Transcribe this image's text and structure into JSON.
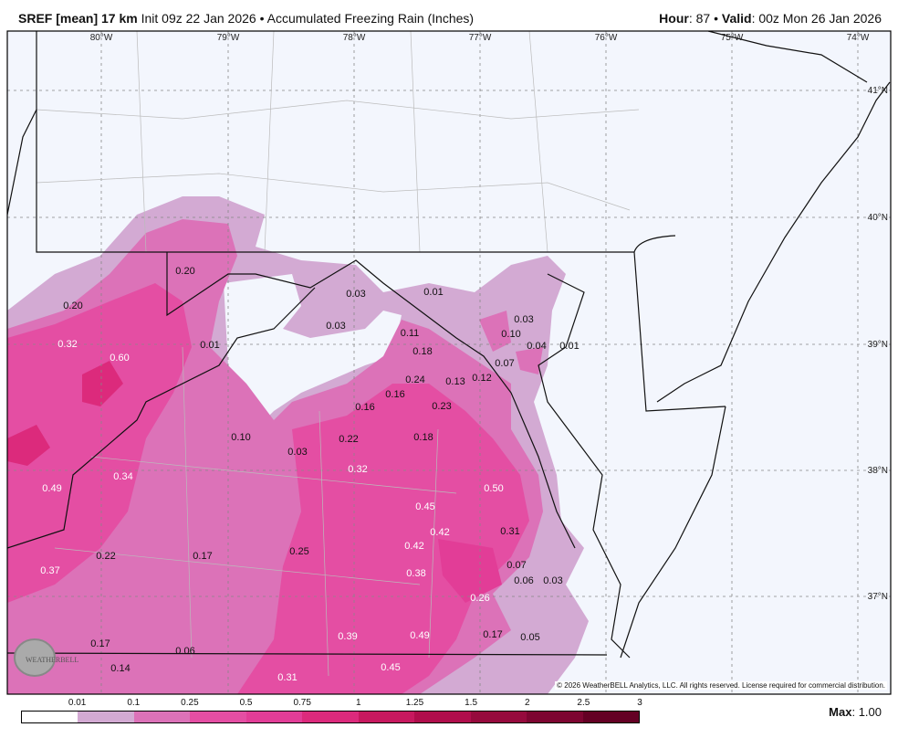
{
  "header": {
    "model": "SREF [mean] 17 km",
    "init": "Init 09z 22 Jan 2026",
    "separator": "•",
    "product": "Accumulated Freezing Rain (Inches)",
    "hour_label": "Hour",
    "hour_value": ": 87",
    "valid_label": "Valid",
    "valid_value": ": 00z Mon 26 Jan 2026"
  },
  "map": {
    "background": "#f3f6fd",
    "longitude_labels": [
      "80°W",
      "79°W",
      "78°W",
      "77°W",
      "76°W",
      "75°W",
      "74°W"
    ],
    "latitude_labels": [
      "41°N",
      "40°N",
      "39°N",
      "38°N",
      "37°N"
    ],
    "value_labels": [
      "0.20",
      "0.20",
      "0.32",
      "0.60",
      "0.01",
      "0.03",
      "0.03",
      "0.01",
      "0.03",
      "0.10",
      "0.04",
      "0.01",
      "0.11",
      "0.18",
      "0.07",
      "0.12",
      "0.13",
      "0.24",
      "0.16",
      "0.16",
      "0.23",
      "0.10",
      "0.03",
      "0.22",
      "0.18",
      "0.32",
      "0.34",
      "0.49",
      "0.50",
      "0.45",
      "0.42",
      "0.31",
      "0.42",
      "0.22",
      "0.17",
      "0.25",
      "0.37",
      "0.38",
      "0.07",
      "0.06",
      "0.03",
      "0.26",
      "0.39",
      "0.49",
      "0.17",
      "0.05",
      "0.17",
      "0.06",
      "0.14",
      "0.31",
      "0.45"
    ],
    "logo_text": "WeatherBELL Analytics LLC",
    "copyright": "© 2026 WeatherBELL Analytics, LLC. All rights reserved. License required for commercial distribution."
  },
  "legend": {
    "ticks": [
      "0.01",
      "0.1",
      "0.25",
      "0.5",
      "0.75",
      "1",
      "1.25",
      "1.5",
      "2",
      "2.5",
      "3"
    ],
    "colors": [
      "#ffffff",
      "#d3aad3",
      "#dc72b8",
      "#e44ea3",
      "#e23d97",
      "#dc2a7c",
      "#c7185f",
      "#b00d4c",
      "#960a3d",
      "#7d0531",
      "#640024"
    ],
    "max_label": "Max",
    "max_value": ": 1.00"
  }
}
